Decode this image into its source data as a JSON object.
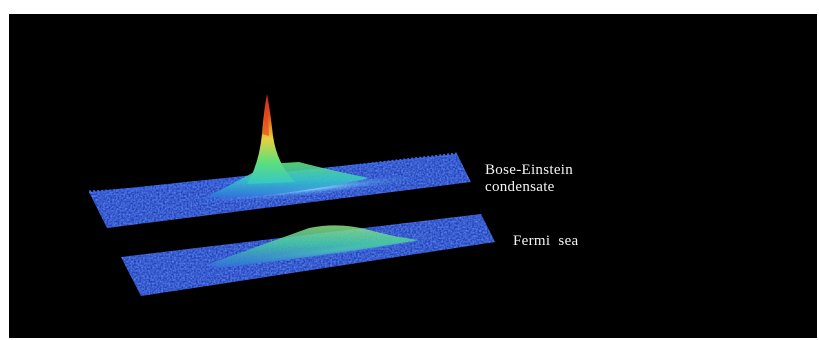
{
  "figure": {
    "background": "#000000",
    "labels": {
      "bec_line1": "Bose-Einstein",
      "bec_line2": "condensate",
      "fermi": "Fermi  sea"
    },
    "colormap": [
      "#1a2ea8",
      "#2f6fe0",
      "#35c6c8",
      "#5fe07a",
      "#e8d040",
      "#e05a1a",
      "#c81a1a"
    ],
    "surfaces": [
      {
        "name": "bose-einstein-condensate",
        "peak": "sharp-central"
      },
      {
        "name": "fermi-sea",
        "peak": "broad-low"
      }
    ]
  }
}
